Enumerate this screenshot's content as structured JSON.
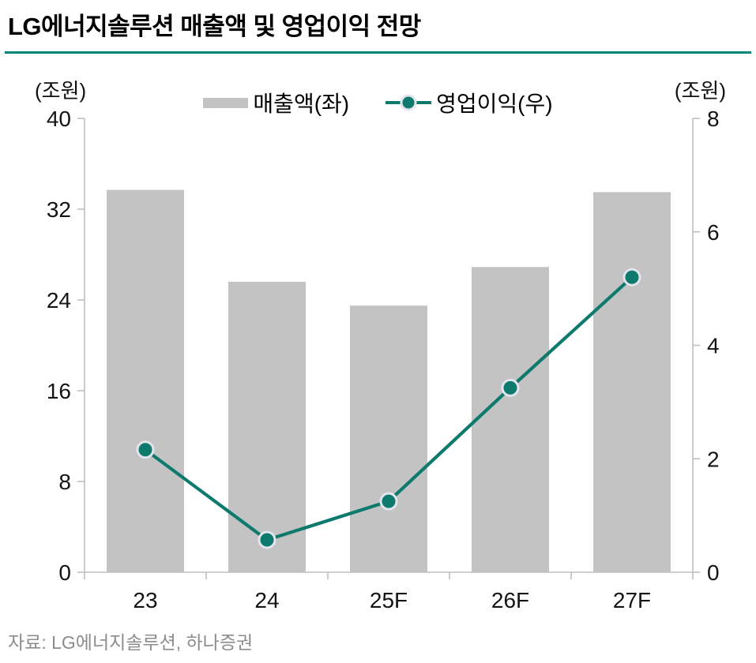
{
  "page": {
    "title": "LG에너지솔루션 매출액 및 영업이익 전망",
    "source": "자료: LG에너지솔루션, 하나증권"
  },
  "colors": {
    "accent_rule": "#00847c",
    "line_series": "#0e7a6d",
    "bar_series": "#c3c3c3",
    "marker_ring": "#e4e4ee",
    "axis_line": "#bfbfbf",
    "tick_text": "#141414",
    "source_text": "#8c8c8c"
  },
  "chart_data": {
    "type": "bar",
    "subtype": "combo-bar-line-dual-axis",
    "title": "LG에너지솔루션 매출액 및 영업이익 전망",
    "categories": [
      "23",
      "24",
      "25F",
      "26F",
      "27F"
    ],
    "series": [
      {
        "name": "매출액(좌)",
        "type": "bar",
        "axis": "left",
        "values": [
          33.7,
          25.6,
          23.5,
          26.9,
          33.5
        ]
      },
      {
        "name": "영업이익(우)",
        "type": "line",
        "axis": "right",
        "values": [
          2.16,
          0.57,
          1.25,
          3.25,
          5.2
        ]
      }
    ],
    "left_axis": {
      "unit_label": "(조원)",
      "ticks": [
        0,
        8,
        16,
        24,
        32,
        40
      ],
      "range": [
        0,
        40
      ]
    },
    "right_axis": {
      "unit_label": "(조원)",
      "ticks": [
        0,
        2,
        4,
        6,
        8
      ],
      "range": [
        0,
        8
      ]
    },
    "legend_position": "top-center",
    "grid": false
  }
}
